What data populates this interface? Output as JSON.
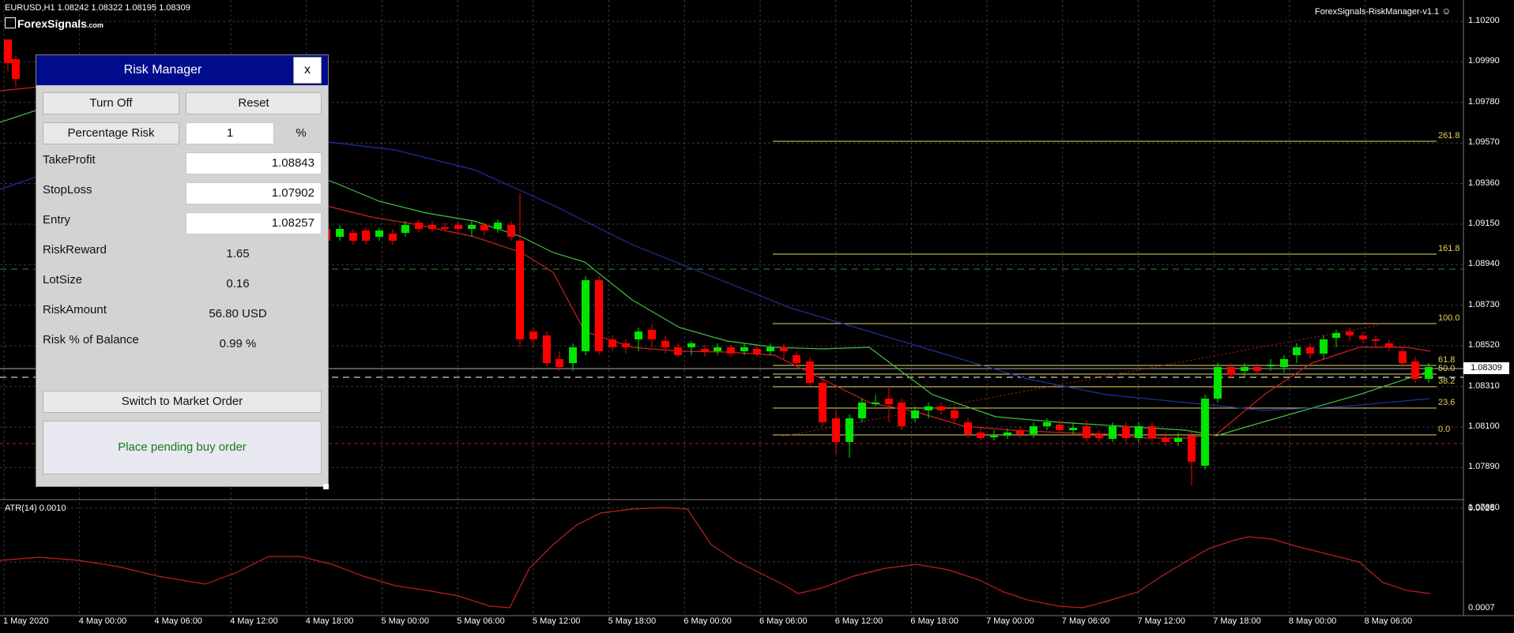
{
  "header": {
    "symbol_info": "EURUSD,H1  1.08242 1.08322 1.08195 1.08309",
    "brand": "ForexSignals",
    "brand_suffix": ".com",
    "indicator_name": "ForexSignals-RiskManager-v1.1"
  },
  "price_axis": [
    "1.10200",
    "1.09990",
    "1.09780",
    "1.09570",
    "1.09360",
    "1.09150",
    "1.08940",
    "1.08730",
    "1.08520",
    "1.08310",
    "1.08100",
    "1.07890",
    "1.07680"
  ],
  "current_price": "1.08309",
  "time_axis": [
    "1 May 2020",
    "4 May 00:00",
    "4 May 06:00",
    "4 May 12:00",
    "4 May 18:00",
    "5 May 00:00",
    "5 May 06:00",
    "5 May 12:00",
    "5 May 18:00",
    "6 May 00:00",
    "6 May 06:00",
    "6 May 12:00",
    "6 May 18:00",
    "7 May 00:00",
    "7 May 06:00",
    "7 May 12:00",
    "7 May 18:00",
    "8 May 00:00",
    "8 May 06:00"
  ],
  "fib_levels": [
    "261.8",
    "161.8",
    "100.0",
    "61.8",
    "50.0",
    "38.2",
    "23.6",
    "0.0"
  ],
  "atr": {
    "label": "ATR(14) 0.0010",
    "axis_top": "0.0026",
    "axis_bottom": "0.0007"
  },
  "risk_manager": {
    "title": "Risk Manager",
    "close_label": "x",
    "turn_off_label": "Turn Off",
    "reset_label": "Reset",
    "percentage_risk_label": "Percentage Risk",
    "risk_percent_value": "1",
    "percent_sign": "%",
    "take_profit_label": "TakeProfit",
    "take_profit_value": "1.08843",
    "stop_loss_label": "StopLoss",
    "stop_loss_value": "1.07902",
    "entry_label": "Entry",
    "entry_value": "1.08257",
    "risk_reward_label": "RiskReward",
    "risk_reward_value": "1.65",
    "lot_size_label": "LotSize",
    "lot_size_value": "0.16",
    "risk_amount_label": "RiskAmount",
    "risk_amount_value": "56.80 USD",
    "risk_pct_balance_label": "Risk % of Balance",
    "risk_pct_balance_value": "0.99 %",
    "switch_label": "Switch to Market Order",
    "status_text": "Place pending buy order"
  },
  "colors": {
    "bull": "#00e600",
    "bear": "#ff0000",
    "fib": "#e6d35a",
    "ma_fast": "#d02020",
    "ma_mid": "#40c040",
    "ma_slow": "#2030a0",
    "grid": "#3a3a3a"
  }
}
